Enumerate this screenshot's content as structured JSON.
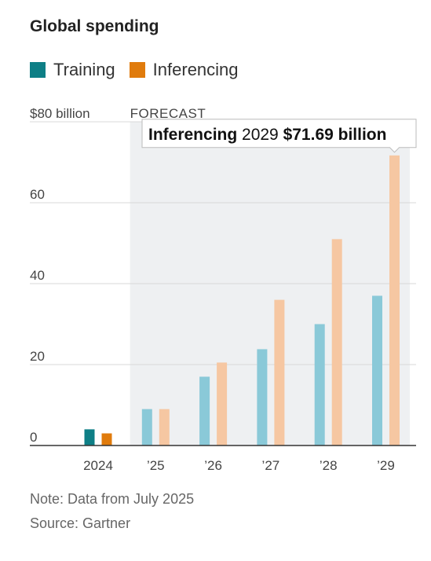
{
  "title": "Global spending",
  "legend": [
    {
      "name": "Training",
      "color": "#0e7f86"
    },
    {
      "name": "Inferencing",
      "color": "#e07b0c"
    }
  ],
  "forecast_label": "FORECAST",
  "tooltip": {
    "series": "Inferencing",
    "year": "2029",
    "value": "$71.69 billion"
  },
  "note": "Note: Data from July 2025",
  "source": "Source: Gartner",
  "chart_data": {
    "type": "bar",
    "categories": [
      "2024",
      "’25",
      "’26",
      "’27",
      "’28",
      "’29"
    ],
    "series": [
      {
        "name": "Training",
        "values": [
          4.0,
          9.0,
          17.0,
          23.8,
          30.0,
          37.0
        ],
        "color": "#0e7f86",
        "forecast_color": "#8ac9d8"
      },
      {
        "name": "Inferencing",
        "values": [
          3.0,
          9.0,
          20.5,
          36.0,
          51.0,
          71.69
        ],
        "color": "#e07b0c",
        "forecast_color": "#f6c7a2"
      }
    ],
    "forecast_start_index": 1,
    "y_ticks": [
      "$80 billion",
      "60",
      "40",
      "20",
      "0"
    ],
    "y_tick_values": [
      80,
      60,
      40,
      20,
      0
    ],
    "ylim": [
      0,
      80
    ],
    "grid": true,
    "highlight": {
      "series": "Inferencing",
      "category": "’29"
    }
  }
}
